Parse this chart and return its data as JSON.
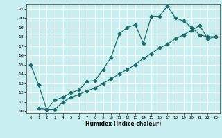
{
  "xlabel": "Humidex (Indice chaleur)",
  "bg_color": "#c8eef0",
  "line_color": "#1a6b6b",
  "grid_color": "#ffffff",
  "xlim": [
    -0.5,
    23.5
  ],
  "ylim": [
    9.8,
    21.5
  ],
  "yticks": [
    10,
    11,
    12,
    13,
    14,
    15,
    16,
    17,
    18,
    19,
    20,
    21
  ],
  "xticks": [
    0,
    1,
    2,
    3,
    4,
    5,
    6,
    7,
    8,
    9,
    10,
    11,
    12,
    13,
    14,
    15,
    16,
    17,
    18,
    19,
    20,
    21,
    22,
    23
  ],
  "line1_x": [
    0,
    1,
    2,
    3,
    4,
    5,
    6,
    7,
    8,
    9,
    10,
    11,
    12,
    13,
    14,
    15,
    16,
    17,
    18,
    19,
    20,
    21,
    22,
    23
  ],
  "line1_y": [
    15,
    12.8,
    10.2,
    11.2,
    11.5,
    12.0,
    12.3,
    13.2,
    13.3,
    14.5,
    15.8,
    18.3,
    19.0,
    19.3,
    17.3,
    20.2,
    20.2,
    21.3,
    20.0,
    19.7,
    19.0,
    18.2,
    18.0,
    18.0
  ],
  "line2_x": [
    1,
    2,
    3,
    4,
    5,
    6,
    7,
    8,
    9,
    10,
    11,
    12,
    13,
    14,
    15,
    16,
    17,
    18,
    19,
    20,
    21,
    22,
    23
  ],
  "line2_y": [
    10.3,
    10.2,
    10.2,
    11.0,
    11.5,
    11.8,
    12.2,
    12.5,
    13.0,
    13.5,
    14.0,
    14.5,
    15.0,
    15.7,
    16.2,
    16.8,
    17.2,
    17.8,
    18.2,
    18.7,
    19.2,
    17.8,
    18.0
  ],
  "marker_size": 2.5,
  "linewidth": 0.9
}
